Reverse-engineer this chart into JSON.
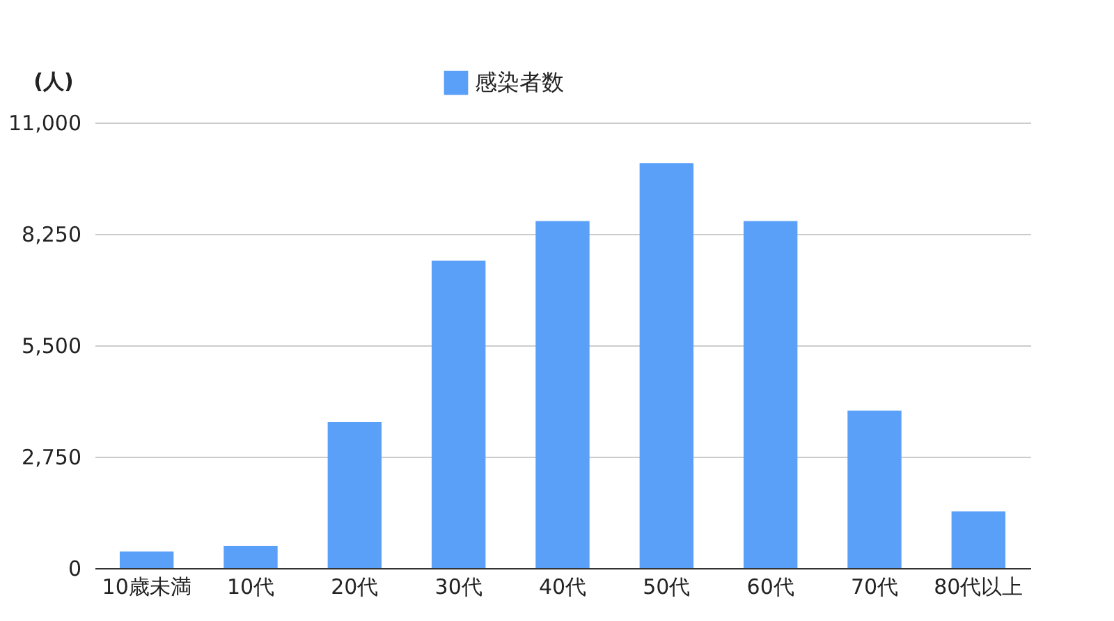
{
  "chart_data": {
    "type": "bar",
    "ylabel": "(人)",
    "categories": [
      "10歳未満",
      "10代",
      "20代",
      "30代",
      "40代",
      "50代",
      "60代",
      "70代",
      "80代以上"
    ],
    "series": [
      {
        "name": "感染者数",
        "color": "#5ba0f8",
        "values": [
          410,
          550,
          3610,
          7590,
          8570,
          10000,
          8570,
          3890,
          1400
        ]
      }
    ],
    "ylim": [
      0,
      11000
    ],
    "yticks": [
      0,
      {
        "value": 2750,
        "label": "2,750"
      },
      {
        "value": 5500,
        "label": "5,500"
      },
      {
        "value": 8250,
        "label": "8,250"
      },
      {
        "value": 11000,
        "label": "11,000"
      }
    ],
    "grid": "y",
    "legend": "top"
  }
}
